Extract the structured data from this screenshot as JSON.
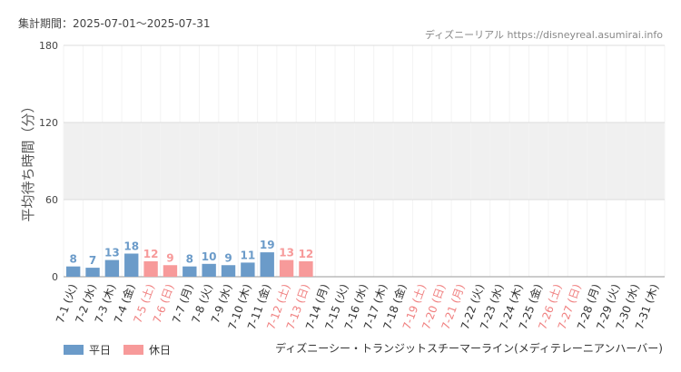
{
  "chart_data": {
    "type": "bar",
    "period_label": "集計期間：2025-07-01〜2025-07-31",
    "source": "ディズニーリアル https://disneyreal.asumirai.info",
    "attraction": "ディズニーシー・トランジットスチーマーライン(メディテレーニアンハーバー)",
    "y_label": "平均待ち時間（分）",
    "categories": [
      "7-1 (火)",
      "7-2 (水)",
      "7-3 (木)",
      "7-4 (金)",
      "7-5 (土)",
      "7-6 (日)",
      "7-7 (月)",
      "7-8 (火)",
      "7-9 (水)",
      "7-10 (木)",
      "7-11 (金)",
      "7-12 (土)",
      "7-13 (日)",
      "7-14 (月)",
      "7-15 (火)",
      "7-16 (水)",
      "7-17 (木)",
      "7-18 (金)",
      "7-19 (土)",
      "7-20 (日)",
      "7-21 (月)",
      "7-22 (火)",
      "7-23 (水)",
      "7-24 (木)",
      "7-25 (金)",
      "7-26 (土)",
      "7-27 (日)",
      "7-28 (月)",
      "7-29 (火)",
      "7-30 (水)",
      "7-31 (木)"
    ],
    "category_label_colors": [
      "#333",
      "#333",
      "#333",
      "#333",
      "#f08080",
      "#f08080",
      "#333",
      "#333",
      "#333",
      "#333",
      "#333",
      "#f08080",
      "#f08080",
      "#333",
      "#333",
      "#333",
      "#333",
      "#333",
      "#f08080",
      "#f08080",
      "#f08080",
      "#333",
      "#333",
      "#333",
      "#333",
      "#f08080",
      "#f08080",
      "#333",
      "#333",
      "#333",
      "#333"
    ],
    "series": [
      {
        "name": "平日",
        "color": "#6b9bc9",
        "values": [
          8,
          7,
          13,
          18,
          null,
          null,
          8,
          10,
          9,
          11,
          19,
          null,
          null,
          null,
          null,
          null,
          null,
          null,
          null,
          null,
          null,
          null,
          null,
          null,
          null,
          null,
          null,
          null,
          null,
          null,
          null
        ]
      },
      {
        "name": "休日",
        "color": "#f79a9a",
        "values": [
          null,
          null,
          null,
          null,
          12,
          9,
          null,
          null,
          null,
          null,
          null,
          13,
          12,
          null,
          null,
          null,
          null,
          null,
          null,
          null,
          null,
          null,
          null,
          null,
          null,
          null,
          null,
          null,
          null,
          null,
          null
        ]
      }
    ],
    "ylim": [
      0,
      180
    ],
    "yticks": [
      0,
      60,
      120,
      180
    ],
    "shaded_range": [
      60,
      120
    ],
    "grid": true
  }
}
